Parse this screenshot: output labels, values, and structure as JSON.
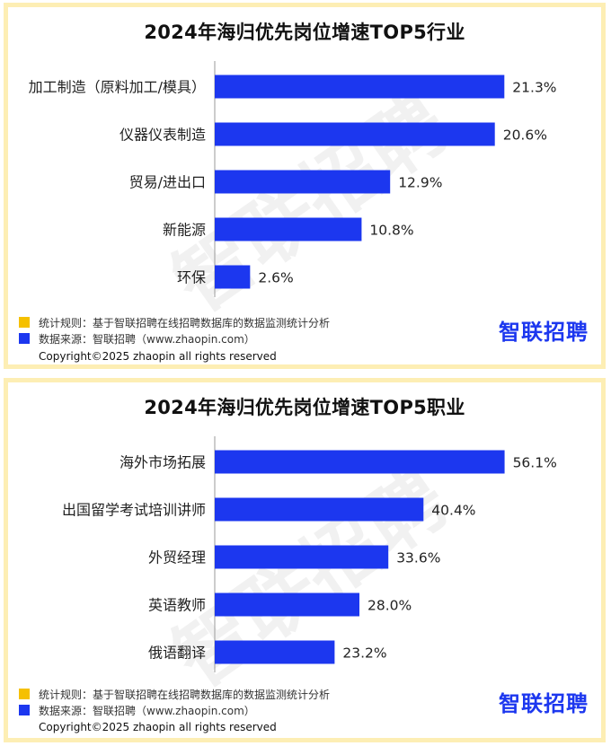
{
  "brand": {
    "logo_text": "智联招聘",
    "watermark_text": "智联招聘",
    "bar_color": "#1c37ef",
    "rule_swatch_color": "#f5c000",
    "source_swatch_color": "#1c37ef",
    "frame_color": "#fdeeb4"
  },
  "notes": {
    "rule": "统计规则：基于智联招聘在线招聘数据库的数据监测统计分析",
    "source": "数据来源：智联招聘（www.zhaopin.com）",
    "copyright": "Copyright©2025 zhaopin all rights reserved"
  },
  "chart_data": [
    {
      "type": "bar",
      "orientation": "horizontal",
      "title": "2024年海归优先岗位增速TOP5行业",
      "categories": [
        "加工制造（原料加工/模具）",
        "仪器仪表制造",
        "贸易/进出口",
        "新能源",
        "环保"
      ],
      "values": [
        21.3,
        20.6,
        12.9,
        10.8,
        2.6
      ],
      "value_labels": [
        "21.3%",
        "20.6%",
        "12.9%",
        "10.8%",
        "2.6%"
      ],
      "xlim": [
        0,
        22.8
      ],
      "grid": false,
      "legend": "none"
    },
    {
      "type": "bar",
      "orientation": "horizontal",
      "title": "2024年海归优先岗位增速TOP5职业",
      "categories": [
        "海外市场拓展",
        "出国留学考试培训讲师",
        "外贸经理",
        "英语教师",
        "俄语翻译"
      ],
      "values": [
        56.1,
        40.4,
        33.6,
        28.0,
        23.2
      ],
      "value_labels": [
        "56.1%",
        "40.4%",
        "33.6%",
        "28.0%",
        "23.2%"
      ],
      "xlim": [
        0,
        60
      ],
      "grid": false,
      "legend": "none"
    }
  ]
}
